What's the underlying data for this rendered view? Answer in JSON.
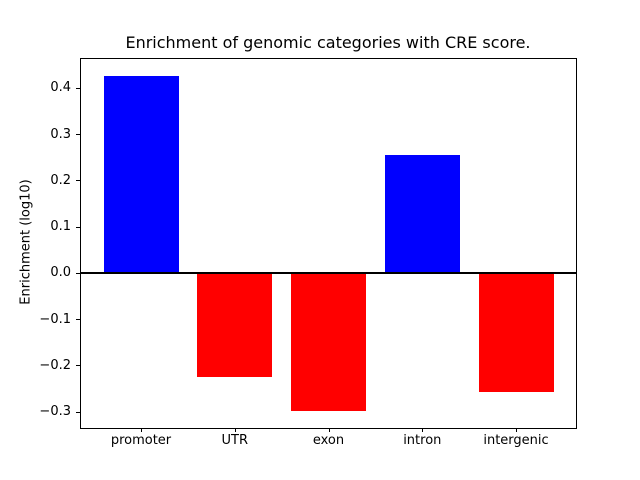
{
  "chart_data": {
    "type": "bar",
    "title": "Enrichment of genomic categories with CRE score.",
    "ylabel": "Enrichment (log10)",
    "categories": [
      "promoter",
      "UTR",
      "exon",
      "intron",
      "intergenic"
    ],
    "values": [
      0.427,
      -0.225,
      -0.298,
      0.256,
      -0.257
    ],
    "bar_colors": [
      "#0000ff",
      "#ff0000",
      "#ff0000",
      "#0000ff",
      "#ff0000"
    ],
    "positive_color": "#0000ff",
    "negative_color": "#ff0000",
    "yticks": [
      0.4,
      0.3,
      0.2,
      0.1,
      0.0,
      -0.1,
      -0.2,
      -0.3
    ],
    "ytick_labels": [
      "0.4",
      "0.3",
      "0.2",
      "0.1",
      "0.0",
      "−0.1",
      "−0.2",
      "−0.3"
    ],
    "ylim": [
      -0.3343,
      0.4633
    ],
    "xlim": [
      -0.64,
      4.64
    ],
    "bar_width": 0.8,
    "zero_line_y": 0.0,
    "grid": false,
    "legend_position": "none",
    "axis_color": "#000000",
    "text_color": "#000000",
    "background_color": "#ffffff"
  }
}
